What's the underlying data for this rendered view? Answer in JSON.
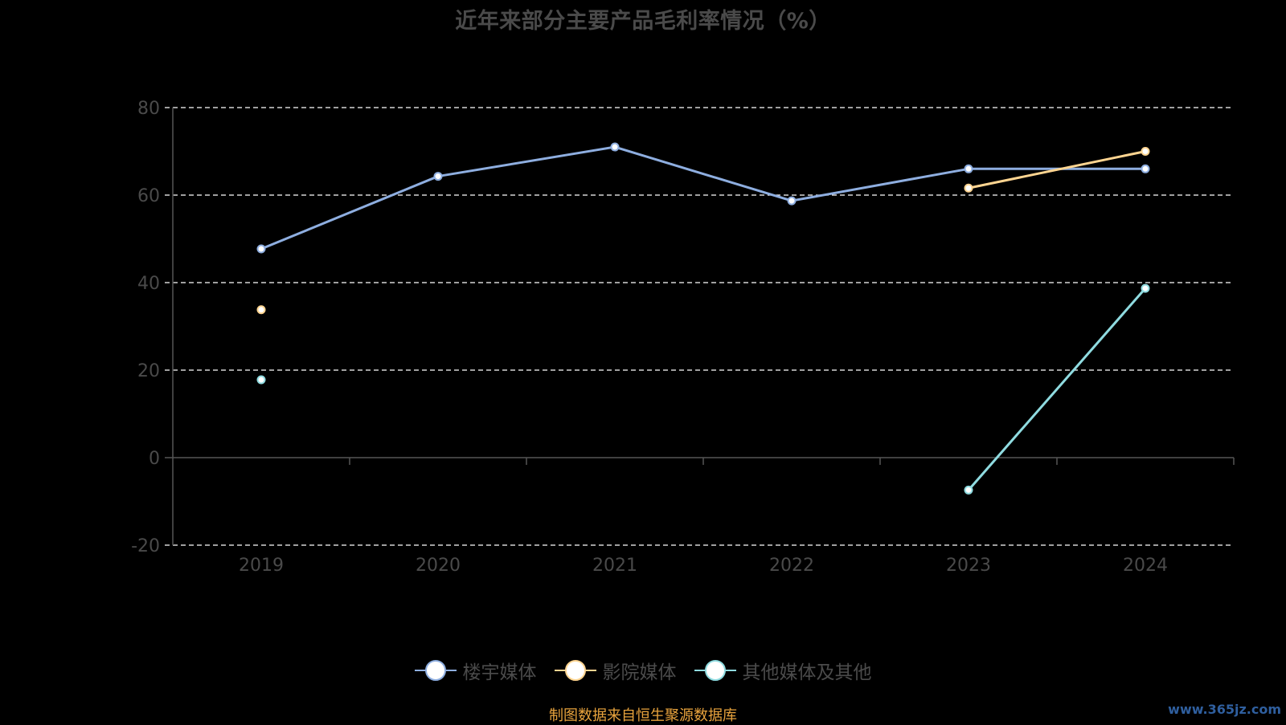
{
  "title": "近年来部分主要产品毛利率情况（%）",
  "source": "制图数据来自恒生聚源数据库",
  "watermark": "www.365jz.com",
  "chart_data": {
    "type": "line",
    "categories": [
      "2019",
      "2020",
      "2021",
      "2022",
      "2023",
      "2024"
    ],
    "ylim": [
      -20,
      80
    ],
    "yticks": [
      -20,
      0,
      20,
      40,
      60,
      80
    ],
    "grid": true,
    "legend_position": "bottom",
    "series": [
      {
        "name": "楼宇媒体",
        "color": "#8eaee0",
        "values": [
          47.7,
          64.3,
          71.0,
          58.7,
          66.0,
          66.0
        ]
      },
      {
        "name": "影院媒体",
        "color": "#ffd591",
        "values": [
          33.8,
          null,
          null,
          null,
          61.6,
          70.0
        ]
      },
      {
        "name": "其他媒体及其他",
        "color": "#8fdbe0",
        "values": [
          17.8,
          null,
          null,
          null,
          -7.4,
          38.7
        ]
      }
    ]
  }
}
